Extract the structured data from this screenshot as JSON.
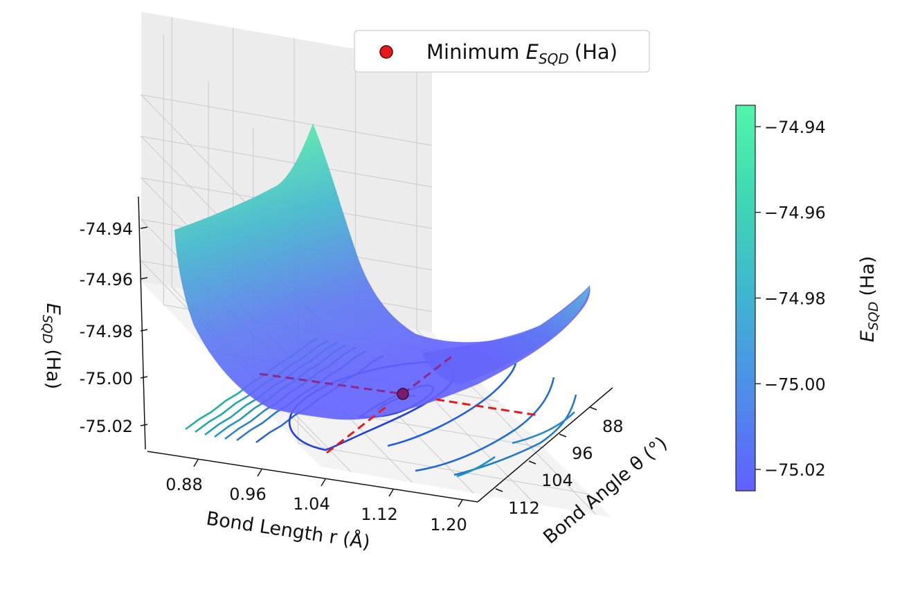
{
  "chart_data": {
    "type": "surface3d",
    "legend": {
      "placement": "top-center",
      "entries": [
        {
          "label": "Minimum E_SQD (Ha)",
          "marker": "circle",
          "color": "#e41a1c"
        }
      ]
    },
    "axes": {
      "x": {
        "label_main": "Bond Length r (Å)",
        "ticks": [
          0.88,
          0.96,
          1.04,
          1.12,
          1.2
        ],
        "tick_labels": [
          "0.88",
          "0.96",
          "1.04",
          "1.12",
          "1.20"
        ],
        "range": [
          0.84,
          1.22
        ]
      },
      "y": {
        "label_main": "Bond Angle θ (°)",
        "ticks": [
          88,
          96,
          104,
          112
        ],
        "tick_labels": [
          "88",
          "96",
          "104",
          "112"
        ],
        "range": [
          84,
          116
        ]
      },
      "z": {
        "label_main": "E",
        "label_sub": "SQD",
        "label_unit": "(Ha)",
        "ticks": [
          -74.94,
          -74.96,
          -74.98,
          -75.0,
          -75.02
        ],
        "tick_labels": [
          "-74.94",
          "-74.96",
          "-74.98",
          "-75.00",
          "-75.02"
        ],
        "range": [
          -75.03,
          -74.9
        ]
      }
    },
    "colorbar": {
      "label_main": "E",
      "label_sub": "SQD",
      "label_unit": "(Ha)",
      "ticks": [
        -74.94,
        -74.96,
        -74.98,
        -75.0,
        -75.02
      ],
      "tick_labels": [
        "−74.94",
        "−74.96",
        "−74.98",
        "−75.00",
        "−75.02"
      ],
      "range": [
        -75.025,
        -74.935
      ],
      "colors": [
        "#6060ff",
        "#4f8cea",
        "#3fb4d2",
        "#3fd6b4",
        "#50f5a8"
      ]
    },
    "minimum": {
      "r": 1.04,
      "theta": 104,
      "energy": -75.005,
      "color": "#e41a1c"
    },
    "grid": true
  }
}
